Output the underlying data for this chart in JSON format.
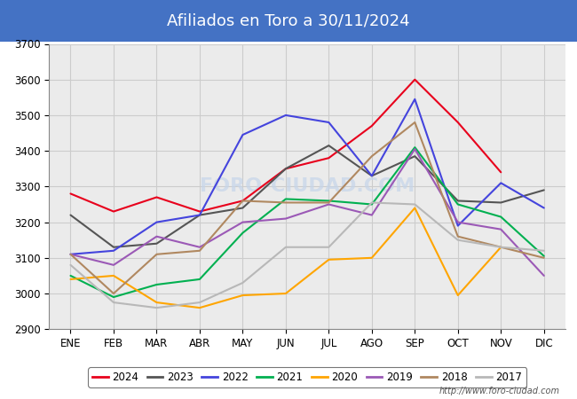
{
  "title": "Afiliados en Toro a 30/11/2024",
  "title_bg_color": "#4472c4",
  "title_text_color": "#ffffff",
  "ylim": [
    2900,
    3700
  ],
  "yticks": [
    2900,
    3000,
    3100,
    3200,
    3300,
    3400,
    3500,
    3600,
    3700
  ],
  "months": [
    "ENE",
    "FEB",
    "MAR",
    "ABR",
    "MAY",
    "JUN",
    "JUL",
    "AGO",
    "SEP",
    "OCT",
    "NOV",
    "DIC"
  ],
  "series": [
    {
      "label": "2024",
      "color": "#e8001c",
      "linewidth": 1.5,
      "values": [
        3280,
        3230,
        3270,
        3230,
        3260,
        3350,
        3380,
        3470,
        3600,
        3480,
        3340,
        null
      ]
    },
    {
      "label": "2023",
      "color": "#555555",
      "linewidth": 1.5,
      "values": [
        3220,
        3130,
        3140,
        3220,
        3240,
        3350,
        3415,
        3330,
        3385,
        3260,
        3255,
        3290
      ]
    },
    {
      "label": "2022",
      "color": "#4444dd",
      "linewidth": 1.5,
      "values": [
        3110,
        3120,
        3200,
        3220,
        3445,
        3500,
        3480,
        3330,
        3545,
        3190,
        3310,
        3240
      ]
    },
    {
      "label": "2021",
      "color": "#00b050",
      "linewidth": 1.5,
      "values": [
        3050,
        2990,
        3025,
        3040,
        3170,
        3265,
        3260,
        3250,
        3410,
        3250,
        3215,
        3105
      ]
    },
    {
      "label": "2020",
      "color": "#ffa500",
      "linewidth": 1.5,
      "values": [
        3040,
        3050,
        2975,
        2960,
        2995,
        3000,
        3095,
        3100,
        3240,
        2995,
        3130,
        null
      ]
    },
    {
      "label": "2019",
      "color": "#9b59b6",
      "linewidth": 1.5,
      "values": [
        3110,
        3080,
        3160,
        3130,
        3200,
        3210,
        3250,
        3220,
        3405,
        3200,
        3180,
        3050
      ]
    },
    {
      "label": "2018",
      "color": "#b08860",
      "linewidth": 1.5,
      "values": [
        3110,
        3000,
        3110,
        3120,
        3260,
        3255,
        3255,
        3385,
        3480,
        3160,
        3130,
        3100
      ]
    },
    {
      "label": "2017",
      "color": "#b8b8b8",
      "linewidth": 1.5,
      "values": [
        3080,
        2975,
        2960,
        2975,
        3030,
        3130,
        3130,
        3255,
        3250,
        3150,
        3130,
        3120
      ]
    }
  ],
  "grid_color": "#cccccc",
  "plot_bg_color": "#ebebeb",
  "legend_border_color": "#555555",
  "footer_url": "http://www.foro-ciudad.com"
}
